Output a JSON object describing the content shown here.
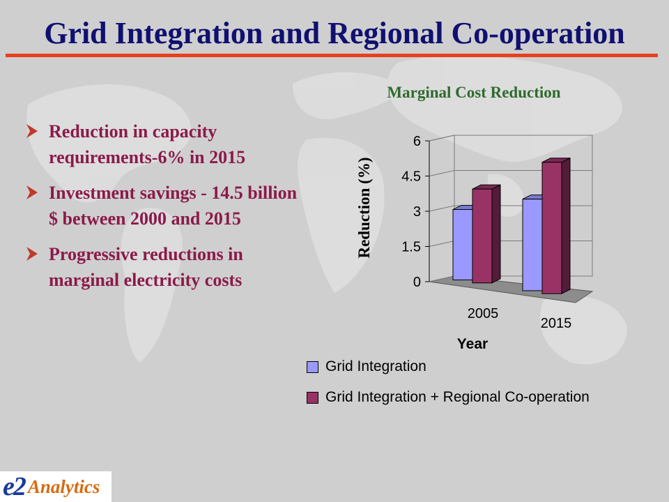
{
  "slide": {
    "title": "Grid Integration and Regional Co-operation",
    "accent_color": "#e8401c",
    "title_color": "#101070",
    "bullet_color": "#8b1a4a"
  },
  "bullets": [
    {
      "text": "Reduction in capacity requirements-6% in 2015"
    },
    {
      "text": "Investment savings - 14.5 billion $ between 2000 and 2015"
    },
    {
      "text": "Progressive reductions in marginal electricity costs"
    }
  ],
  "logo": {
    "mark": "e2",
    "text": "Analytics"
  },
  "chart_data": {
    "type": "bar",
    "title": "Marginal Cost Reduction",
    "xlabel": "Year",
    "ylabel": "Reduction (%)",
    "categories": [
      "2005",
      "2015"
    ],
    "ylim": [
      0,
      6
    ],
    "yticks": [
      "0",
      "1.5",
      "3",
      "4.5",
      "6"
    ],
    "series": [
      {
        "name": "Grid Integration",
        "values": [
          3.0,
          3.9
        ],
        "color": "#9999ff"
      },
      {
        "name": "Grid Integration + Regional Co-operation",
        "values": [
          4.0,
          5.6
        ],
        "color": "#993366"
      }
    ],
    "grid": true,
    "legend_position": "bottom",
    "three_d": true
  }
}
